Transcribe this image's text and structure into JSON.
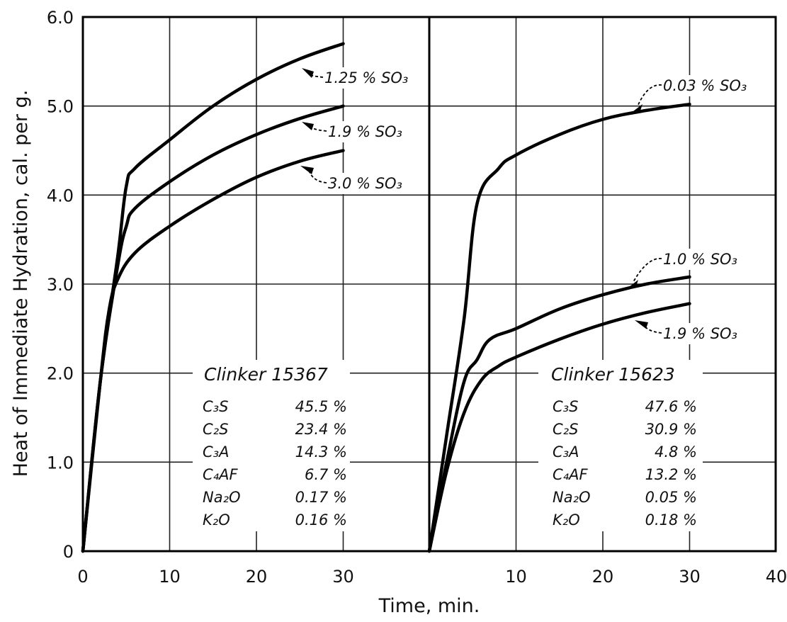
{
  "chart_data": {
    "type": "line",
    "ylabel": "Heat of Immediate Hydration, cal. per g.",
    "xlabel": "Time, min.",
    "ylim": [
      0,
      6.0
    ],
    "yticks": [
      "0",
      "1.0",
      "2.0",
      "3.0",
      "4.0",
      "5.0",
      "6.0"
    ],
    "grid": true,
    "panels": [
      {
        "name": "Clinker 15367",
        "xlim": [
          0,
          40
        ],
        "xticks": [
          "0",
          "10",
          "20",
          "30"
        ],
        "series": [
          {
            "name": "1.25 % SO3",
            "label": "1.25 % SO₃",
            "x": [
              0,
              2,
              4,
              5,
              6,
              10,
              15,
              20,
              25,
              30
            ],
            "y": [
              0,
              1.9,
              3.3,
              4.1,
              4.3,
              4.62,
              5.0,
              5.3,
              5.53,
              5.7
            ]
          },
          {
            "name": "1.9 % SO3",
            "label": "1.9 % SO₃",
            "x": [
              0,
              2,
              4,
              5,
              6,
              10,
              15,
              20,
              25,
              30
            ],
            "y": [
              0,
              1.9,
              3.2,
              3.65,
              3.85,
              4.15,
              4.45,
              4.68,
              4.86,
              5.0
            ]
          },
          {
            "name": "3.0 % SO3",
            "label": "3.0 % SO₃",
            "x": [
              0,
              2,
              3,
              4,
              6,
              10,
              15,
              20,
              25,
              30
            ],
            "y": [
              0,
              1.9,
              2.7,
              3.05,
              3.35,
              3.65,
              3.95,
              4.2,
              4.38,
              4.5
            ]
          }
        ],
        "composition": [
          {
            "oxide": "C₃S",
            "value": "45.5 %"
          },
          {
            "oxide": "C₂S",
            "value": "23.4 %"
          },
          {
            "oxide": "C₃A",
            "value": "14.3 %"
          },
          {
            "oxide": "C₄AF",
            "value": "6.7 %"
          },
          {
            "oxide": "Na₂O",
            "value": "0.17 %"
          },
          {
            "oxide": "K₂O",
            "value": "0.16 %"
          }
        ]
      },
      {
        "name": "Clinker 15623",
        "xlim": [
          0,
          40
        ],
        "xticks": [
          "10",
          "20",
          "30",
          "40"
        ],
        "series": [
          {
            "name": "0.03 % SO3",
            "label": "0.03 % SO₃",
            "x": [
              0,
              2,
              4,
              5.5,
              8,
              10,
              15,
              20,
              25,
              30
            ],
            "y": [
              0,
              1.3,
              2.6,
              3.9,
              4.3,
              4.45,
              4.68,
              4.85,
              4.95,
              5.02
            ]
          },
          {
            "name": "1.0 % SO3",
            "label": "1.0 % SO₃",
            "x": [
              0,
              2,
              4,
              5.5,
              7,
              10,
              15,
              20,
              25,
              30
            ],
            "y": [
              0,
              1.0,
              1.9,
              2.15,
              2.38,
              2.5,
              2.72,
              2.88,
              3.0,
              3.08
            ]
          },
          {
            "name": "1.9 % SO3",
            "label": "1.9 % SO₃",
            "x": [
              0,
              2,
              4,
              6,
              8,
              10,
              15,
              20,
              25,
              30
            ],
            "y": [
              0,
              0.9,
              1.55,
              1.92,
              2.08,
              2.18,
              2.38,
              2.55,
              2.68,
              2.78
            ]
          }
        ],
        "composition": [
          {
            "oxide": "C₃S",
            "value": "47.6 %"
          },
          {
            "oxide": "C₂S",
            "value": "30.9 %"
          },
          {
            "oxide": "C₃A",
            "value": "4.8 %"
          },
          {
            "oxide": "C₄AF",
            "value": "13.2 %"
          },
          {
            "oxide": "Na₂O",
            "value": "0.05 %"
          },
          {
            "oxide": "K₂O",
            "value": "0.18 %"
          }
        ]
      }
    ]
  }
}
